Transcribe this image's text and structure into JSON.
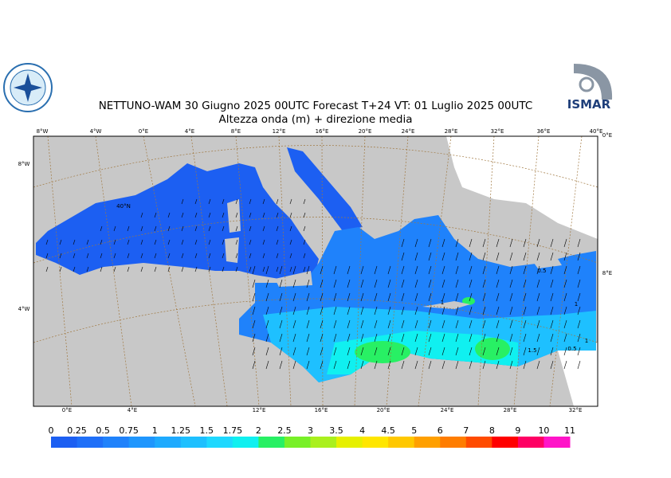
{
  "header": {
    "title": "NETTUNO-WAM  30   Giugno  2025 00UTC Forecast T+24 VT: 01  Luglio   2025 00UTC",
    "subtitle": "Altezza onda (m) + direzione media",
    "logo_right": "ISMAR"
  },
  "map": {
    "top_labels": [
      "8°W",
      "4°W",
      "0°E",
      "4°E",
      "8°E",
      "12°E",
      "16°E",
      "20°E",
      "24°E",
      "28°E",
      "32°E",
      "36°E",
      "40°E"
    ],
    "bottom_labels": [
      "0°E",
      "4°E",
      "12°E",
      "16°E",
      "20°E",
      "24°E",
      "28°E",
      "32°E"
    ],
    "left_labels": [
      "8°W",
      "4°W"
    ],
    "right_labels": [
      "0°E",
      "8°E"
    ],
    "inner_labels": [
      "40°N"
    ],
    "contour_labels": [
      "0.5",
      "1",
      "1",
      "1.5",
      "0.5",
      "1"
    ]
  },
  "colorbar": {
    "ticks": [
      0,
      0.25,
      0.5,
      0.75,
      1,
      1.25,
      1.5,
      1.75,
      2,
      2.5,
      3,
      3.5,
      4,
      4.5,
      5,
      6,
      7,
      8,
      9,
      10,
      11
    ],
    "colors": [
      "#1c5ff2",
      "#1f6ff8",
      "#2082fb",
      "#1f96fd",
      "#1eaafe",
      "#1ec0ff",
      "#1ed8ff",
      "#10f0f0",
      "#28f064",
      "#78f028",
      "#aaf01e",
      "#e6f000",
      "#ffe600",
      "#ffc800",
      "#ffa000",
      "#ff7d00",
      "#ff4b00",
      "#ff0000",
      "#ff0064",
      "#ff14c8"
    ]
  }
}
